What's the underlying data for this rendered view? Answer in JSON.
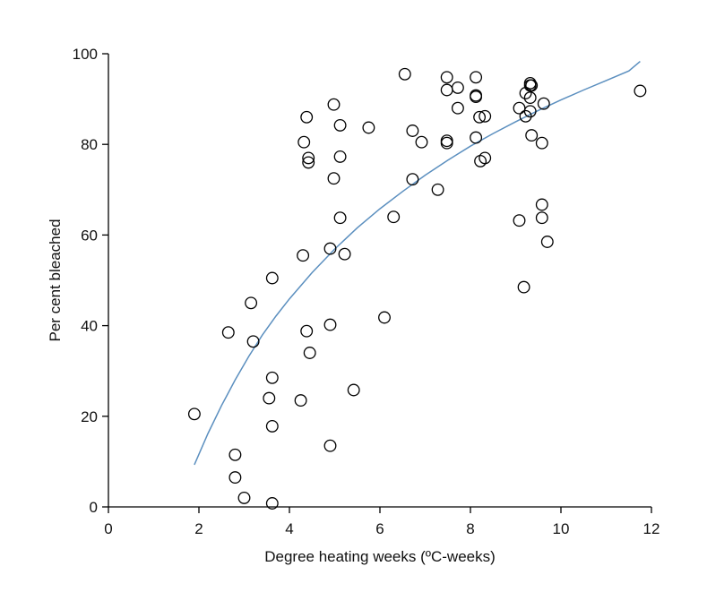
{
  "chart_data": {
    "type": "scatter",
    "xlabel": "Degree heating weeks (ºC-weeks)",
    "ylabel": "Per cent bleached",
    "xlim": [
      0,
      12
    ],
    "ylim": [
      0,
      100
    ],
    "xticks": [
      0,
      2,
      4,
      6,
      8,
      10,
      12
    ],
    "yticks": [
      0,
      20,
      40,
      60,
      80,
      100
    ],
    "grid": false,
    "colors": {
      "points": "#000000",
      "curve": "#5b8fbf",
      "axis": "#000000"
    },
    "points": [
      [
        1.9,
        20.5
      ],
      [
        2.65,
        38.5
      ],
      [
        2.8,
        11.5
      ],
      [
        2.8,
        6.5
      ],
      [
        3.0,
        2.0
      ],
      [
        3.15,
        45.0
      ],
      [
        3.2,
        36.5
      ],
      [
        3.55,
        24.0
      ],
      [
        3.62,
        50.5
      ],
      [
        3.62,
        28.5
      ],
      [
        3.62,
        17.8
      ],
      [
        3.62,
        0.8
      ],
      [
        4.25,
        23.5
      ],
      [
        4.3,
        55.5
      ],
      [
        4.32,
        80.5
      ],
      [
        4.38,
        86.0
      ],
      [
        4.38,
        38.8
      ],
      [
        4.42,
        77.0
      ],
      [
        4.42,
        76.0
      ],
      [
        4.45,
        34.0
      ],
      [
        4.9,
        57.0
      ],
      [
        4.9,
        40.2
      ],
      [
        4.9,
        13.5
      ],
      [
        4.98,
        88.8
      ],
      [
        4.98,
        72.5
      ],
      [
        5.12,
        84.2
      ],
      [
        5.12,
        77.3
      ],
      [
        5.12,
        63.8
      ],
      [
        5.22,
        55.8
      ],
      [
        5.42,
        25.8
      ],
      [
        5.75,
        83.7
      ],
      [
        6.1,
        41.8
      ],
      [
        6.3,
        64.0
      ],
      [
        6.55,
        95.5
      ],
      [
        6.72,
        83.0
      ],
      [
        6.72,
        72.3
      ],
      [
        6.92,
        80.5
      ],
      [
        7.28,
        70.0
      ],
      [
        7.48,
        94.8
      ],
      [
        7.48,
        92.0
      ],
      [
        7.48,
        80.8
      ],
      [
        7.48,
        80.3
      ],
      [
        7.72,
        92.5
      ],
      [
        7.72,
        88.0
      ],
      [
        8.12,
        94.8
      ],
      [
        8.12,
        90.8
      ],
      [
        8.12,
        90.5
      ],
      [
        8.12,
        81.5
      ],
      [
        8.2,
        86.0
      ],
      [
        8.22,
        76.3
      ],
      [
        8.32,
        86.2
      ],
      [
        8.32,
        77.0
      ],
      [
        9.08,
        88.0
      ],
      [
        9.08,
        63.2
      ],
      [
        9.18,
        48.5
      ],
      [
        9.22,
        91.3
      ],
      [
        9.22,
        86.2
      ],
      [
        9.32,
        93.5
      ],
      [
        9.32,
        93.0
      ],
      [
        9.32,
        90.3
      ],
      [
        9.32,
        87.3
      ],
      [
        9.35,
        93.0
      ],
      [
        9.35,
        82.0
      ],
      [
        9.58,
        80.3
      ],
      [
        9.58,
        66.7
      ],
      [
        9.58,
        63.8
      ],
      [
        9.62,
        89.0
      ],
      [
        9.7,
        58.5
      ],
      [
        11.75,
        91.8
      ]
    ],
    "fit_curve": {
      "x": [
        1.9,
        2.2,
        2.5,
        2.8,
        3.1,
        3.4,
        3.7,
        4.0,
        4.5,
        5.0,
        5.5,
        6.0,
        6.5,
        7.0,
        7.5,
        8.0,
        8.5,
        9.0,
        9.5,
        10.0,
        10.5,
        11.0,
        11.5,
        11.75
      ],
      "y": [
        9.3,
        16.2,
        22.4,
        28.0,
        33.2,
        37.9,
        42.1,
        45.9,
        51.7,
        56.9,
        61.6,
        65.8,
        69.6,
        73.2,
        76.5,
        79.6,
        82.4,
        85.0,
        87.5,
        89.8,
        92.0,
        94.1,
        96.2,
        98.3
      ]
    }
  }
}
